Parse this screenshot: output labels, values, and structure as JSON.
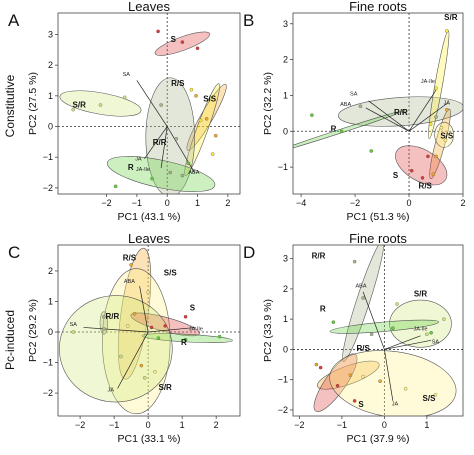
{
  "row_labels": [
    "Constitutive",
    "Pc-induced"
  ],
  "chart_data": [
    {
      "type": "scatter",
      "panel_letter": "A",
      "title": "Leaves",
      "xlabel": "PC1 (43.1 %)",
      "ylabel": "PC2 (27.5 %)",
      "xlim": [
        -3.6,
        2.4
      ],
      "ylim": [
        -2.2,
        3.7
      ],
      "xticks": [
        -2,
        -1,
        0,
        1,
        2
      ],
      "yticks": [
        -2,
        -1,
        0,
        1,
        2,
        3
      ],
      "groups": [
        {
          "name": "S",
          "color": "#e03a3a",
          "label": [
            0.2,
            2.75
          ],
          "ellipse": {
            "cx": 0.5,
            "cy": 2.7,
            "rx": 0.95,
            "ry": 0.22,
            "angle": -20
          },
          "points": [
            [
              -0.3,
              3.1
            ],
            [
              0.5,
              2.75
            ],
            [
              1.0,
              2.55
            ]
          ]
        },
        {
          "name": "S/R",
          "color": "#cde67a",
          "label": [
            -2.9,
            0.62
          ],
          "ellipse": {
            "cx": -2.2,
            "cy": 0.75,
            "rx": 1.35,
            "ry": 0.35,
            "angle": 10
          },
          "points": [
            [
              -3.1,
              0.55
            ],
            [
              -2.2,
              0.7
            ],
            [
              -1.4,
              0.95
            ]
          ]
        },
        {
          "name": "R/S",
          "color": "#f2a626",
          "label": [
            0.35,
            1.32
          ],
          "ellipse": {
            "cx": 1.3,
            "cy": 0.3,
            "rx": 1.25,
            "ry": 0.2,
            "angle": -60
          },
          "points": [
            [
              0.95,
              1.0
            ],
            [
              1.3,
              0.25
            ],
            [
              1.6,
              -0.3
            ]
          ]
        },
        {
          "name": "S/S",
          "color": "#ffee33",
          "label": [
            1.4,
            0.82
          ],
          "ellipse": {
            "cx": 1.15,
            "cy": -0.1,
            "rx": 1.6,
            "ry": 0.18,
            "angle": -70
          },
          "points": [
            [
              0.8,
              1.2
            ],
            [
              1.1,
              0.2
            ],
            [
              1.5,
              -0.9
            ]
          ]
        },
        {
          "name": "R/R",
          "color": "#a9b48c",
          "label": [
            -0.25,
            -0.6
          ],
          "ellipse": {
            "cx": 0.1,
            "cy": -0.35,
            "rx": 0.8,
            "ry": 1.95,
            "angle": 0
          },
          "points": [
            [
              -0.2,
              0.7
            ],
            [
              0.3,
              -0.4
            ],
            [
              0.1,
              -1.5
            ],
            [
              0.5,
              -1.6
            ]
          ]
        },
        {
          "name": "R",
          "color": "#5fcf3a",
          "label": [
            -1.2,
            -1.42
          ],
          "ellipse": {
            "cx": -0.2,
            "cy": -1.55,
            "rx": 1.8,
            "ry": 0.45,
            "angle": 12
          },
          "points": [
            [
              -1.7,
              -1.95
            ],
            [
              -0.5,
              -1.7
            ],
            [
              0.7,
              -1.2
            ]
          ]
        }
      ],
      "loadings": [
        {
          "name": "SA",
          "x": -1.0,
          "y": 1.5,
          "label": [
            -1.35,
            1.65
          ]
        },
        {
          "name": "ABA",
          "x": 0.9,
          "y": -1.5,
          "label": [
            0.88,
            -1.55
          ]
        },
        {
          "name": "JA",
          "x": -0.75,
          "y": -1.05,
          "label": [
            -0.95,
            -1.1
          ]
        },
        {
          "name": "JA-Ile",
          "x": -0.2,
          "y": -1.35,
          "label": [
            -0.8,
            -1.45
          ]
        }
      ]
    },
    {
      "type": "scatter",
      "panel_letter": "B",
      "title": "Fine roots",
      "xlabel": "PC1 (51.3 %)",
      "ylabel": "PC2 (32.2 %)",
      "xlim": [
        -4.3,
        2.0
      ],
      "ylim": [
        -1.75,
        3.3
      ],
      "xticks": [
        -4,
        -2,
        0,
        2
      ],
      "yticks": [
        -1,
        0,
        1,
        2,
        3
      ],
      "groups": [
        {
          "name": "R/R",
          "color": "#a9b48c",
          "label": [
            -0.3,
            0.45
          ],
          "ellipse": {
            "cx": -0.3,
            "cy": 0.55,
            "rx": 2.0,
            "ry": 0.45,
            "angle": -4
          },
          "points": [
            [
              -1.8,
              0.7
            ],
            [
              -0.2,
              0.55
            ],
            [
              1.0,
              0.4
            ]
          ]
        },
        {
          "name": "R",
          "color": "#5fcf3a",
          "label": [
            -2.8,
            0.0
          ],
          "ellipse": {
            "cx": -2.55,
            "cy": 0.0,
            "rx": 2.05,
            "ry": 0.06,
            "angle": -18
          },
          "points": [
            [
              -3.6,
              0.45
            ],
            [
              -2.5,
              0.0
            ],
            [
              -1.4,
              -0.55
            ]
          ]
        },
        {
          "name": "S/R",
          "color": "#ffee33",
          "label": [
            1.55,
            3.1
          ],
          "ellipse": {
            "cx": 1.1,
            "cy": 1.3,
            "rx": 1.75,
            "ry": 0.12,
            "angle": -80
          },
          "points": [
            [
              1.4,
              2.8
            ],
            [
              1.0,
              1.2
            ],
            [
              0.8,
              0.2
            ]
          ]
        },
        {
          "name": "R/S",
          "color": "#f2a626",
          "label": [
            0.6,
            -1.6
          ],
          "ellipse": {
            "cx": 1.15,
            "cy": -0.35,
            "rx": 1.15,
            "ry": 0.15,
            "angle": -75
          },
          "points": [
            [
              1.4,
              0.6
            ],
            [
              1.0,
              -0.7
            ],
            [
              0.9,
              -1.2
            ]
          ]
        },
        {
          "name": "S",
          "color": "#e03a3a",
          "label": [
            -0.5,
            -1.3
          ],
          "ellipse": {
            "cx": 0.45,
            "cy": -0.95,
            "rx": 0.9,
            "ry": 0.5,
            "angle": 30
          },
          "points": [
            [
              0.1,
              -1.1
            ],
            [
              0.7,
              -0.7
            ],
            [
              0.5,
              -1.3
            ]
          ]
        },
        {
          "name": "S/S",
          "color": "#fff28a",
          "label": [
            1.4,
            -0.2
          ],
          "ellipse": {
            "cx": 1.3,
            "cy": -0.1,
            "rx": 0.3,
            "ry": 0.4,
            "angle": 0
          },
          "points": [
            [
              1.2,
              0.1
            ],
            [
              1.35,
              -0.25
            ]
          ]
        }
      ],
      "loadings": [
        {
          "name": "SA",
          "x": -1.5,
          "y": 0.85,
          "label": [
            -2.05,
            1.0
          ]
        },
        {
          "name": "ABA",
          "x": -1.6,
          "y": 0.65,
          "label": [
            -2.35,
            0.7
          ]
        },
        {
          "name": "JA-Ile",
          "x": 1.0,
          "y": 1.15,
          "label": [
            0.7,
            1.35
          ]
        },
        {
          "name": "JA",
          "x": 1.45,
          "y": 0.8,
          "label": [
            1.4,
            0.75
          ]
        }
      ]
    },
    {
      "type": "scatter",
      "panel_letter": "C",
      "title": "Leaves",
      "xlabel": "PC1 (33.1 %)",
      "ylabel": "PC2 (29.2 %)",
      "xlim": [
        -2.65,
        2.7
      ],
      "ylim": [
        -2.75,
        2.85
      ],
      "xticks": [
        -2,
        -1,
        0,
        1,
        2
      ],
      "yticks": [
        -2,
        -1,
        0,
        1,
        2
      ],
      "groups": [
        {
          "name": "R/S",
          "color": "#f2a626",
          "label": [
            -0.55,
            2.35
          ],
          "ellipse": {
            "cx": -0.4,
            "cy": 0.6,
            "rx": 2.05,
            "ry": 0.42,
            "angle": -82
          },
          "points": [
            [
              -0.5,
              2.2
            ],
            [
              -0.4,
              0.6
            ],
            [
              -0.2,
              -1.1
            ]
          ]
        },
        {
          "name": "S/S",
          "color": "#fff28a",
          "label": [
            0.65,
            1.85
          ],
          "ellipse": {
            "cx": -0.35,
            "cy": -0.3,
            "rx": 1.05,
            "ry": 2.25,
            "angle": 0
          },
          "points": [
            [
              0.0,
              1.3
            ],
            [
              -0.6,
              0.2
            ],
            [
              0.2,
              -1.3
            ]
          ]
        },
        {
          "name": "R/R",
          "color": "#a9b48c",
          "label": [
            -1.05,
            0.42
          ],
          "ellipse": {
            "cx": -1.3,
            "cy": 0.3,
            "rx": 0.12,
            "ry": 0.35,
            "angle": 0
          },
          "points": [
            [
              -1.3,
              0.5
            ],
            [
              -1.3,
              0.1
            ]
          ]
        },
        {
          "name": "S",
          "color": "#e03a3a",
          "label": [
            1.3,
            0.7
          ],
          "ellipse": {
            "cx": 0.5,
            "cy": 0.25,
            "rx": 1.1,
            "ry": 0.22,
            "angle": 15
          },
          "points": [
            [
              0.1,
              0.15
            ],
            [
              0.5,
              0.2
            ],
            [
              1.1,
              0.5
            ]
          ]
        },
        {
          "name": "R",
          "color": "#5fcf3a",
          "label": [
            1.05,
            -0.42
          ],
          "ellipse": {
            "cx": 1.15,
            "cy": -0.2,
            "rx": 1.4,
            "ry": 0.12,
            "angle": 3
          },
          "points": [
            [
              0.3,
              -0.2
            ],
            [
              1.1,
              -0.25
            ],
            [
              2.1,
              -0.15
            ]
          ]
        },
        {
          "name": "S/R",
          "color": "#cde67a",
          "label": [
            0.5,
            -1.9
          ],
          "ellipse": {
            "cx": -0.95,
            "cy": -0.55,
            "rx": 1.75,
            "ry": 1.65,
            "angle": 0
          },
          "points": [
            [
              -2.2,
              0.0
            ],
            [
              -0.1,
              -1.5
            ],
            [
              -0.8,
              -0.8
            ]
          ]
        }
      ],
      "loadings": [
        {
          "name": "ABA",
          "x": -0.25,
          "y": 1.5,
          "label": [
            -0.55,
            1.6
          ]
        },
        {
          "name": "SA",
          "x": -1.9,
          "y": 0.15,
          "label": [
            -2.2,
            0.2
          ]
        },
        {
          "name": "JA-Ile",
          "x": 1.4,
          "y": 0.15,
          "label": [
            1.4,
            0.05
          ]
        },
        {
          "name": "JA",
          "x": -0.9,
          "y": -1.85,
          "label": [
            -1.1,
            -1.95
          ]
        }
      ]
    },
    {
      "type": "scatter",
      "panel_letter": "D",
      "title": "Fine roots",
      "xlabel": "PC1 (37.9 %)",
      "ylabel": "PC2 (33.9 %)",
      "xlim": [
        -2.15,
        1.85
      ],
      "ylim": [
        -2.2,
        3.45
      ],
      "xticks": [
        -2,
        -1,
        0,
        1
      ],
      "yticks": [
        -2,
        -1,
        0,
        1,
        2,
        3
      ],
      "groups": [
        {
          "name": "R/R",
          "color": "#a9b48c",
          "label": [
            -1.55,
            3.0
          ],
          "ellipse": {
            "cx": -0.5,
            "cy": 1.6,
            "rx": 1.75,
            "ry": 0.18,
            "angle": -72
          },
          "points": [
            [
              -0.7,
              2.9
            ],
            [
              -0.5,
              1.7
            ],
            [
              -0.3,
              0.5
            ]
          ]
        },
        {
          "name": "S/R",
          "color": "#cde67a",
          "label": [
            0.85,
            1.75
          ],
          "ellipse": {
            "cx": 0.85,
            "cy": 0.85,
            "rx": 0.85,
            "ry": 0.65,
            "angle": 0
          },
          "points": [
            [
              0.3,
              1.5
            ],
            [
              1.0,
              0.5
            ],
            [
              1.4,
              1.0
            ]
          ]
        },
        {
          "name": "R",
          "color": "#5fcf3a",
          "label": [
            -1.45,
            1.25
          ],
          "ellipse": {
            "cx": 0.0,
            "cy": 0.75,
            "rx": 1.5,
            "ry": 0.13,
            "angle": -5
          },
          "points": [
            [
              -1.2,
              0.9
            ],
            [
              0.2,
              0.7
            ],
            [
              1.1,
              0.55
            ]
          ]
        },
        {
          "name": "R/S",
          "color": "#f2a626",
          "label": [
            -0.5,
            -0.05
          ],
          "ellipse": {
            "cx": -0.85,
            "cy": -0.85,
            "rx": 0.9,
            "ry": 0.25,
            "angle": -20
          },
          "points": [
            [
              -1.6,
              -0.5
            ],
            [
              -0.8,
              -0.85
            ],
            [
              -0.1,
              -1.05
            ]
          ]
        },
        {
          "name": "S",
          "color": "#e03a3a",
          "label": [
            -0.55,
            -1.9
          ],
          "ellipse": {
            "cx": -1.15,
            "cy": -1.1,
            "rx": 0.95,
            "ry": 0.28,
            "angle": -55
          },
          "points": [
            [
              -1.5,
              -0.6
            ],
            [
              -1.1,
              -1.2
            ],
            [
              -0.7,
              -1.7
            ]
          ]
        },
        {
          "name": "S/S",
          "color": "#fff28a",
          "label": [
            1.05,
            -1.7
          ],
          "ellipse": {
            "cx": 0.2,
            "cy": -1.15,
            "rx": 1.75,
            "ry": 0.9,
            "angle": 8
          },
          "points": [
            [
              -0.5,
              -0.9
            ],
            [
              0.5,
              -1.3
            ],
            [
              1.2,
              -1.5
            ]
          ]
        }
      ],
      "loadings": [
        {
          "name": "ABA",
          "x": -0.5,
          "y": 1.9,
          "label": [
            -0.55,
            2.05
          ]
        },
        {
          "name": "JA-Ile",
          "x": 0.85,
          "y": 0.45,
          "label": [
            0.85,
            0.62
          ]
        },
        {
          "name": "SA",
          "x": 1.1,
          "y": 0.3,
          "label": [
            1.2,
            0.2
          ]
        },
        {
          "name": "JA",
          "x": 0.2,
          "y": -1.7,
          "label": [
            0.25,
            -1.85
          ]
        }
      ]
    }
  ]
}
